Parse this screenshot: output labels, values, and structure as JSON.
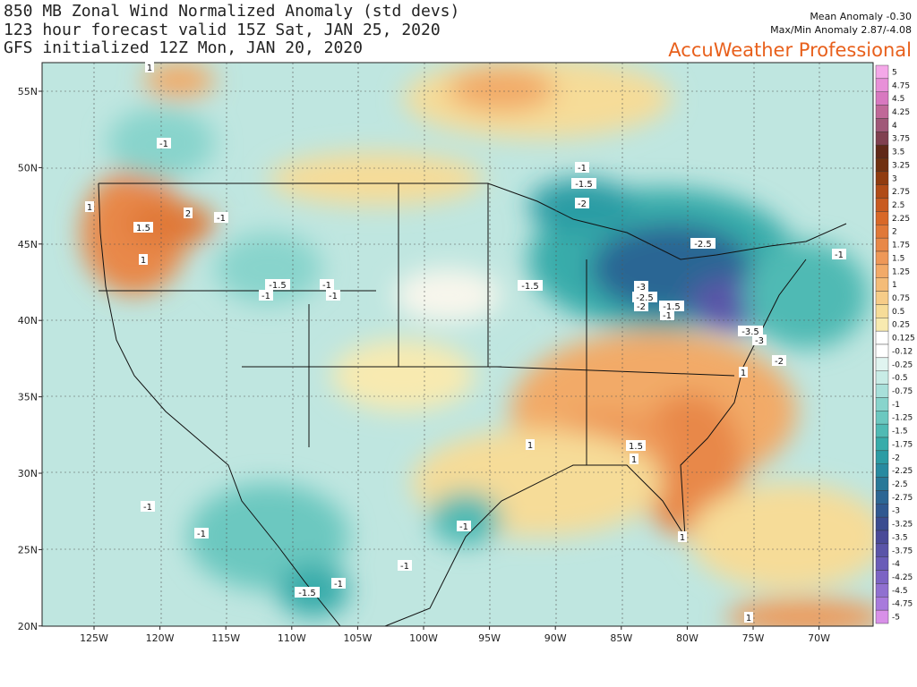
{
  "header": {
    "title_lines": [
      "850 MB Zonal Wind Normalized Anomaly (std devs)",
      "123 hour forecast valid 15Z Sat, JAN 25, 2020",
      "GFS initialized 12Z Mon, JAN 20, 2020"
    ],
    "mean_anomaly": "Mean Anomaly -0.30",
    "max_min": "Max/Min Anomaly 2.87/-4.08",
    "brand": "AccuWeather Professional"
  },
  "map": {
    "lat_labels": [
      "55N",
      "50N",
      "45N",
      "40N",
      "35N",
      "30N",
      "25N",
      "20N"
    ],
    "lon_labels": [
      "125W",
      "120W",
      "115W",
      "110W",
      "105W",
      "100W",
      "95W",
      "90W",
      "85W",
      "80W",
      "75W",
      "70W"
    ],
    "contour_labels": [
      "1",
      "-1",
      "1",
      "1.5",
      "2",
      "-1",
      "1",
      "-1.5",
      "-1",
      "-1",
      "-1",
      "-1",
      "-1.5",
      "-2",
      "-2.5",
      "-1.5",
      "-3",
      "-2.5",
      "-2",
      "-1.5",
      "-1",
      "-3.5",
      "-3",
      "-2",
      "-1",
      "1",
      "1",
      "1.5",
      "1",
      "-1",
      "-1",
      "-1",
      "-1",
      "-1",
      "-1.5",
      "1",
      "1"
    ]
  },
  "colorbar": {
    "labels": [
      "5",
      "4.75",
      "4.5",
      "4.25",
      "4",
      "3.75",
      "3.5",
      "3.25",
      "3",
      "2.75",
      "2.5",
      "2.25",
      "2",
      "1.75",
      "1.5",
      "1.25",
      "1",
      "0.75",
      "0.5",
      "0.25",
      "0.125",
      "-0.12",
      "-0.25",
      "-0.5",
      "-0.75",
      "-1",
      "-1.25",
      "-1.5",
      "-1.75",
      "-2",
      "-2.25",
      "-2.5",
      "-2.75",
      "-3",
      "-3.25",
      "-3.5",
      "-3.75",
      "-4",
      "-4.25",
      "-4.5",
      "-4.75",
      "-5"
    ],
    "colors": [
      "#f4a8e8",
      "#e890d8",
      "#d878c0",
      "#c06898",
      "#a05878",
      "#804050",
      "#602818",
      "#703010",
      "#903c10",
      "#b04c18",
      "#c85a20",
      "#d86828",
      "#e07838",
      "#e88848",
      "#ee9858",
      "#f2aa68",
      "#f4bc78",
      "#f6cc88",
      "#f6dc98",
      "#f8eab0",
      "#ffffff",
      "#ffffff",
      "#e0f4f0",
      "#c8ece6",
      "#a8e0da",
      "#88d4cc",
      "#6cc8c0",
      "#50bab4",
      "#38acaa",
      "#2c9ca4",
      "#288aa0",
      "#287898",
      "#2c6694",
      "#305890",
      "#3a4c90",
      "#4a4a98",
      "#5a54a8",
      "#6a5cb8",
      "#7c64c4",
      "#9070d0",
      "#a87adc",
      "#d890e8"
    ]
  }
}
